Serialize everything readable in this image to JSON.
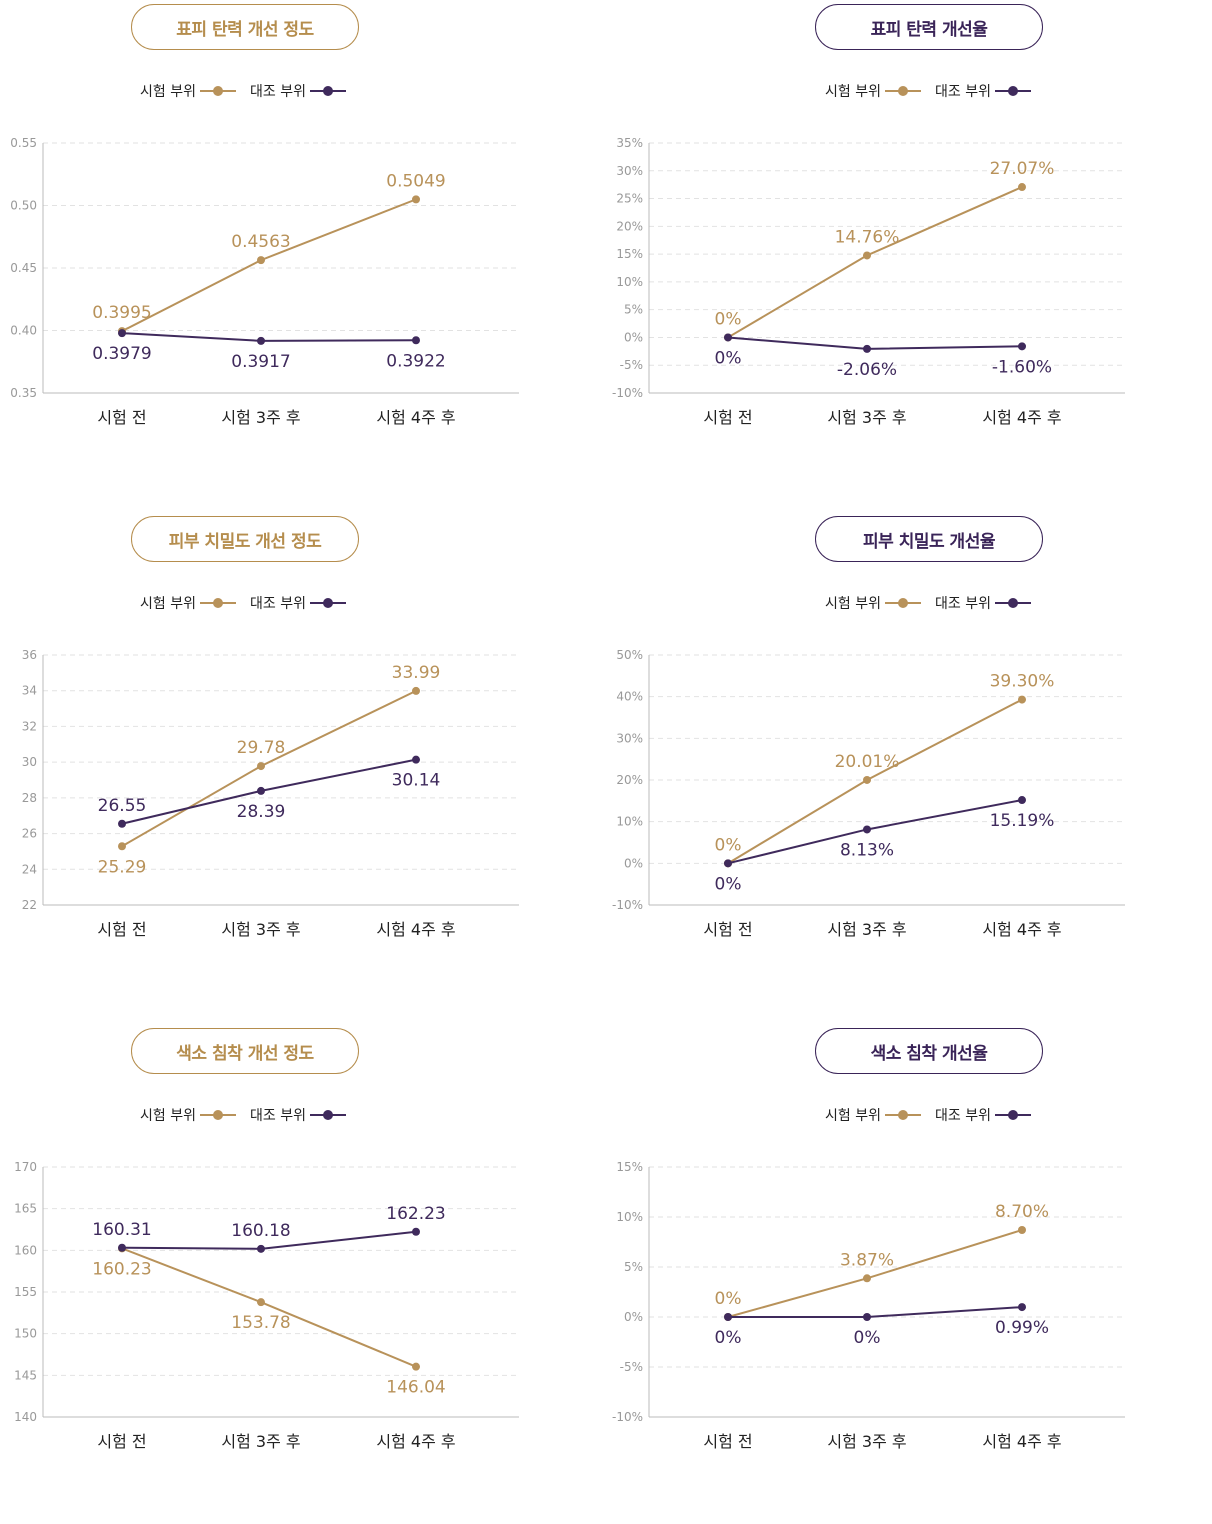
{
  "colors": {
    "test": "#b8925a",
    "control": "#3f2a5c",
    "grid": "#e2e2e2",
    "axis": "#bbbbbb"
  },
  "legend": {
    "test": "시험 부위",
    "control": "대조 부위"
  },
  "charts": [
    {
      "title": "표피 탄력 개선 정도",
      "title_style": "gold",
      "chart_data": {
        "type": "line",
        "categories": [
          "시험 전",
          "시험 3주 후",
          "시험 4주 후"
        ],
        "ylim": [
          0.35,
          0.55
        ],
        "yticks": [
          "0.35",
          "0.40",
          "0.45",
          "0.50",
          "0.55"
        ],
        "series": [
          {
            "name": "시험 부위",
            "values": [
              0.3995,
              0.4563,
              0.5049
            ],
            "labels": [
              "0.3995",
              "0.4563",
              "0.5049"
            ],
            "label_pos": [
              "above",
              "above",
              "above"
            ]
          },
          {
            "name": "대조 부위",
            "values": [
              0.3979,
              0.3917,
              0.3922
            ],
            "labels": [
              "0.3979",
              "0.3917",
              "0.3922"
            ],
            "label_pos": [
              "below",
              "below",
              "below"
            ]
          }
        ]
      }
    },
    {
      "title": "표피 탄력 개선율",
      "title_style": "purple",
      "chart_data": {
        "type": "line",
        "categories": [
          "시험 전",
          "시험 3주 후",
          "시험 4주 후"
        ],
        "ylim": [
          -10,
          35
        ],
        "yticks": [
          "-10%",
          "-5%",
          "0%",
          "5%",
          "10%",
          "15%",
          "20%",
          "25%",
          "30%",
          "35%"
        ],
        "series": [
          {
            "name": "시험 부위",
            "values": [
              0,
              14.76,
              27.07
            ],
            "labels": [
              "0%",
              "14.76%",
              "27.07%"
            ],
            "label_pos": [
              "above",
              "above",
              "above"
            ]
          },
          {
            "name": "대조 부위",
            "values": [
              0,
              -2.06,
              -1.6
            ],
            "labels": [
              "0%",
              "-2.06%",
              "-1.60%"
            ],
            "label_pos": [
              "below",
              "below",
              "below"
            ]
          }
        ]
      }
    },
    {
      "title": "피부 치밀도 개선 정도",
      "title_style": "gold",
      "chart_data": {
        "type": "line",
        "categories": [
          "시험 전",
          "시험 3주 후",
          "시험 4주 후"
        ],
        "ylim": [
          22,
          36
        ],
        "yticks": [
          "22",
          "24",
          "26",
          "28",
          "30",
          "32",
          "34",
          "36"
        ],
        "series": [
          {
            "name": "시험 부위",
            "values": [
              25.29,
              29.78,
              33.99
            ],
            "labels": [
              "25.29",
              "29.78",
              "33.99"
            ],
            "label_pos": [
              "below",
              "above",
              "above"
            ]
          },
          {
            "name": "대조 부위",
            "values": [
              26.55,
              28.39,
              30.14
            ],
            "labels": [
              "26.55",
              "28.39",
              "30.14"
            ],
            "label_pos": [
              "above",
              "below",
              "below"
            ]
          }
        ]
      }
    },
    {
      "title": "피부 치밀도 개선율",
      "title_style": "purple",
      "chart_data": {
        "type": "line",
        "categories": [
          "시험 전",
          "시험 3주 후",
          "시험 4주 후"
        ],
        "ylim": [
          -10,
          50
        ],
        "yticks": [
          "-10%",
          "0%",
          "10%",
          "20%",
          "30%",
          "40%",
          "50%"
        ],
        "series": [
          {
            "name": "시험 부위",
            "values": [
              0,
              20.01,
              39.3
            ],
            "labels": [
              "0%",
              "20.01%",
              "39.30%"
            ],
            "label_pos": [
              "above",
              "above",
              "above"
            ]
          },
          {
            "name": "대조 부위",
            "values": [
              0,
              8.13,
              15.19
            ],
            "labels": [
              "0%",
              "8.13%",
              "15.19%"
            ],
            "label_pos": [
              "below",
              "below",
              "below"
            ]
          }
        ]
      }
    },
    {
      "title": "색소 침착 개선 정도",
      "title_style": "gold",
      "chart_data": {
        "type": "line",
        "categories": [
          "시험 전",
          "시험 3주 후",
          "시험 4주 후"
        ],
        "ylim": [
          140,
          170
        ],
        "yticks": [
          "140",
          "145",
          "150",
          "155",
          "160",
          "165",
          "170"
        ],
        "series": [
          {
            "name": "시험 부위",
            "values": [
              160.23,
              153.78,
              146.04
            ],
            "labels": [
              "160.23",
              "153.78",
              "146.04"
            ],
            "label_pos": [
              "below",
              "below",
              "below"
            ]
          },
          {
            "name": "대조 부위",
            "values": [
              160.31,
              160.18,
              162.23
            ],
            "labels": [
              "160.31",
              "160.18",
              "162.23"
            ],
            "label_pos": [
              "above",
              "above",
              "above"
            ]
          }
        ]
      }
    },
    {
      "title": "색소 침착 개선율",
      "title_style": "purple",
      "chart_data": {
        "type": "line",
        "categories": [
          "시험 전",
          "시험 3주 후",
          "시험 4주 후"
        ],
        "ylim": [
          -10,
          15
        ],
        "yticks": [
          "-10%",
          "-5%",
          "0%",
          "5%",
          "10%",
          "15%"
        ],
        "series": [
          {
            "name": "시험 부위",
            "values": [
              0,
              3.87,
              8.7
            ],
            "labels": [
              "0%",
              "3.87%",
              "8.70%"
            ],
            "label_pos": [
              "above",
              "above",
              "above"
            ]
          },
          {
            "name": "대조 부위",
            "values": [
              0,
              0,
              0.99
            ],
            "labels": [
              "0%",
              "0%",
              "0.99%"
            ],
            "label_pos": [
              "below",
              "below",
              "below"
            ]
          }
        ]
      }
    }
  ]
}
